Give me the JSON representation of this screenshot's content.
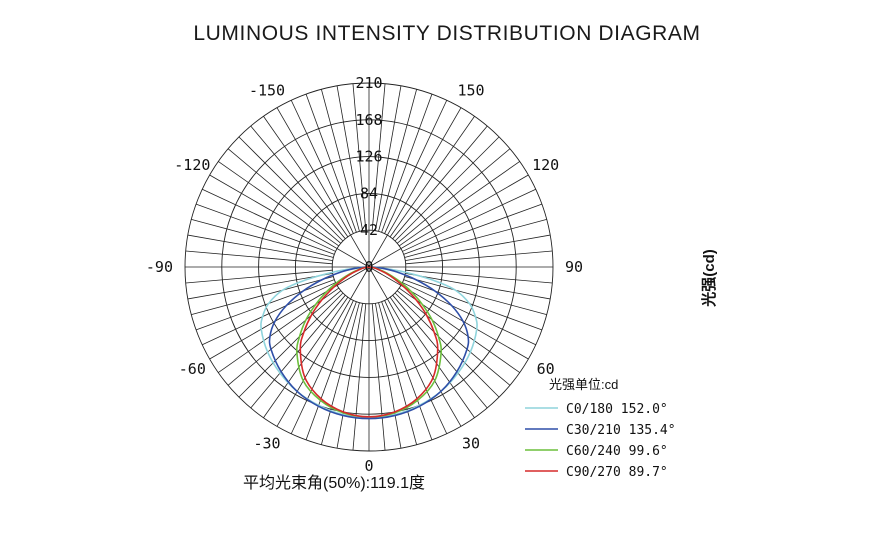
{
  "chart_data": {
    "type": "polar",
    "title": "LUMINOUS INTENSITY DISTRIBUTION DIAGRAM",
    "unit_side_label": "光强(cd)",
    "radial_ticks": [
      "0",
      "42",
      "84",
      "126",
      "168",
      "210"
    ],
    "radial_max": 210,
    "angle_labels": [
      {
        "angle": -150,
        "text": "-150"
      },
      {
        "angle": 150,
        "text": "150"
      },
      {
        "angle": -120,
        "text": "-120"
      },
      {
        "angle": 120,
        "text": "120"
      },
      {
        "angle": -90,
        "text": "-90"
      },
      {
        "angle": 90,
        "text": "90"
      },
      {
        "angle": -60,
        "text": "-60"
      },
      {
        "angle": 60,
        "text": "60"
      },
      {
        "angle": -30,
        "text": "-30"
      },
      {
        "angle": 30,
        "text": "30"
      },
      {
        "angle": 0,
        "text": "0"
      }
    ],
    "legend_title": "光强单位:cd",
    "series": [
      {
        "name": "C0/180 152.0°",
        "color": "#8fd4dc",
        "beam_angle": 152.0,
        "points": [
          [
            0,
            172
          ],
          [
            10,
            171
          ],
          [
            20,
            168
          ],
          [
            30,
            164
          ],
          [
            40,
            158
          ],
          [
            50,
            151
          ],
          [
            60,
            142
          ],
          [
            65,
            134
          ],
          [
            70,
            122
          ],
          [
            75,
            102
          ],
          [
            78,
            78
          ],
          [
            80,
            58
          ],
          [
            82,
            40
          ],
          [
            84,
            24
          ],
          [
            86,
            12
          ],
          [
            88,
            5
          ],
          [
            90,
            0
          ]
        ]
      },
      {
        "name": "C30/210 135.4°",
        "color": "#2f4fa8",
        "beam_angle": 135.4,
        "points": [
          [
            0,
            173
          ],
          [
            10,
            172
          ],
          [
            20,
            169
          ],
          [
            30,
            164
          ],
          [
            40,
            156
          ],
          [
            50,
            146
          ],
          [
            55,
            138
          ],
          [
            60,
            124
          ],
          [
            65,
            104
          ],
          [
            70,
            80
          ],
          [
            75,
            55
          ],
          [
            80,
            32
          ],
          [
            84,
            17
          ],
          [
            87,
            7
          ],
          [
            90,
            0
          ]
        ]
      },
      {
        "name": "C60/240 99.6°",
        "color": "#6cbf3c",
        "beam_angle": 99.6,
        "points": [
          [
            0,
            171
          ],
          [
            10,
            169
          ],
          [
            20,
            162
          ],
          [
            30,
            150
          ],
          [
            40,
            128
          ],
          [
            45,
            112
          ],
          [
            50,
            94
          ],
          [
            55,
            74
          ],
          [
            60,
            55
          ],
          [
            65,
            38
          ],
          [
            70,
            24
          ],
          [
            75,
            14
          ],
          [
            80,
            8
          ],
          [
            85,
            3
          ],
          [
            90,
            0
          ]
        ]
      },
      {
        "name": "C90/270 89.7°",
        "color": "#d62a2a",
        "beam_angle": 89.7,
        "points": [
          [
            0,
            171
          ],
          [
            10,
            168
          ],
          [
            20,
            160
          ],
          [
            30,
            146
          ],
          [
            40,
            122
          ],
          [
            45,
            105
          ],
          [
            50,
            86
          ],
          [
            55,
            66
          ],
          [
            60,
            47
          ],
          [
            65,
            32
          ],
          [
            70,
            20
          ],
          [
            75,
            11
          ],
          [
            80,
            6
          ],
          [
            85,
            2
          ],
          [
            90,
            0
          ]
        ]
      }
    ],
    "beam_label": "平均光束角(50%):119.1度"
  }
}
